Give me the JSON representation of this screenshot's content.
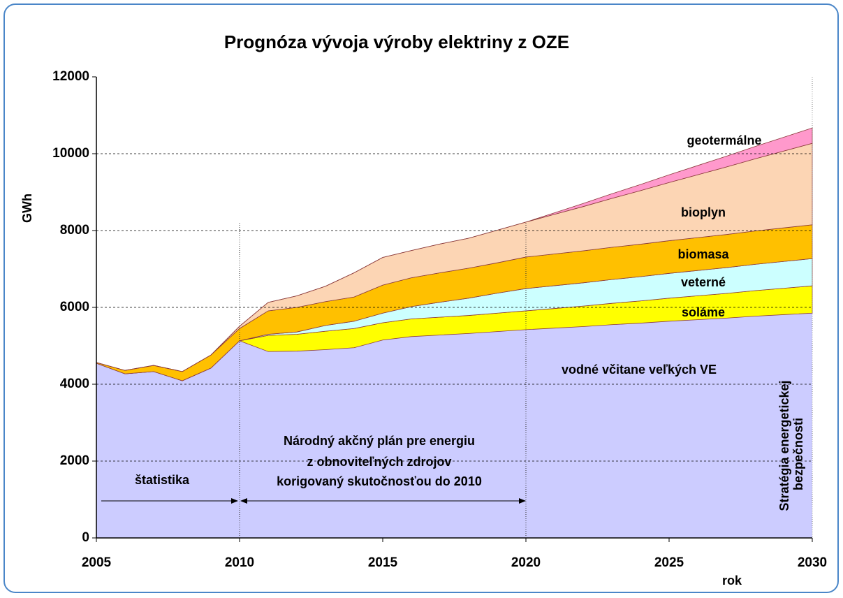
{
  "chart_data": {
    "type": "stacked_area",
    "title": "Prognóza vývoja výroby elektriny z OZE",
    "y_label": "GWh",
    "x_label": "rok",
    "x": [
      2005,
      2006,
      2007,
      2008,
      2009,
      2010,
      2011,
      2012,
      2013,
      2014,
      2015,
      2016,
      2017,
      2018,
      2019,
      2020,
      2021,
      2022,
      2023,
      2024,
      2025,
      2026,
      2027,
      2028,
      2029,
      2030
    ],
    "xlim": [
      2005,
      2030
    ],
    "xticks": [
      2005,
      2010,
      2015,
      2020,
      2025,
      2030
    ],
    "ylim": [
      0,
      12000
    ],
    "yticks": [
      0,
      2000,
      4000,
      6000,
      8000,
      10000,
      12000
    ],
    "grid": true,
    "series": [
      {
        "name": "vodné včitane veľkých VE",
        "color": "#ccccff",
        "values": [
          4545,
          4270,
          4330,
          4090,
          4420,
          5130,
          4850,
          4860,
          4900,
          4950,
          5150,
          5240,
          5280,
          5320,
          5370,
          5420,
          5460,
          5500,
          5550,
          5590,
          5640,
          5680,
          5720,
          5770,
          5810,
          5850
        ]
      },
      {
        "name": "soláme",
        "color": "#ffff00",
        "values": [
          0,
          0,
          0,
          0,
          0,
          0,
          420,
          440,
          480,
          500,
          450,
          460,
          465,
          470,
          480,
          490,
          512,
          534,
          556,
          578,
          600,
          622,
          644,
          666,
          688,
          710
        ]
      },
      {
        "name": "veterné",
        "color": "#ccffff",
        "values": [
          0,
          0,
          0,
          0,
          0,
          0,
          30,
          60,
          150,
          190,
          250,
          320,
          390,
          450,
          520,
          580,
          593,
          606,
          619,
          632,
          645,
          658,
          671,
          684,
          697,
          710
        ]
      },
      {
        "name": "biomasa",
        "color": "#ffc000",
        "values": [
          20,
          90,
          160,
          240,
          340,
          320,
          610,
          640,
          620,
          630,
          730,
          750,
          765,
          780,
          790,
          820,
          826,
          832,
          838,
          844,
          850,
          856,
          862,
          868,
          874,
          880
        ]
      },
      {
        "name": "bioplyn",
        "color": "#fcd5b4",
        "values": [
          0,
          0,
          0,
          0,
          0,
          60,
          220,
          300,
          400,
          630,
          720,
          710,
          750,
          780,
          850,
          910,
          1031,
          1152,
          1273,
          1394,
          1515,
          1636,
          1757,
          1878,
          1999,
          2120
        ]
      },
      {
        "name": "geotermálne",
        "color": "#ff99cc",
        "values": [
          0,
          0,
          0,
          0,
          0,
          0,
          0,
          0,
          0,
          0,
          0,
          0,
          0,
          0,
          0,
          0,
          40,
          80,
          120,
          160,
          200,
          240,
          280,
          320,
          360,
          400
        ]
      }
    ],
    "annotations": [
      "štatistika",
      "Národný akčný plán pre energiu",
      "z obnoviteľných zdrojov",
      "korigovaný skutočnosťou do 2010",
      "Stratégia energetickej",
      "bezpečnosti"
    ],
    "markers": [
      2010,
      2020
    ]
  }
}
